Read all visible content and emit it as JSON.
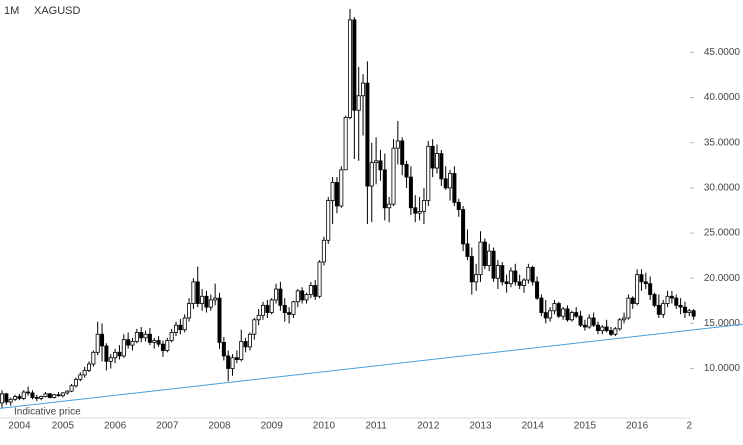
{
  "chart_data": {
    "type": "candlestick",
    "title": "XAGUSD",
    "subtitle": "1M",
    "annotation": "Indicative price",
    "categories": [
      null,
      null,
      null,
      null,
      "2004",
      null,
      null,
      null,
      null,
      null,
      null,
      null,
      null,
      null,
      "2005",
      null,
      null,
      null,
      null,
      null,
      null,
      null,
      null,
      null,
      null,
      null,
      "2006",
      null,
      null,
      null,
      null,
      null,
      null,
      null,
      null,
      null,
      null,
      null,
      "2007",
      null,
      null,
      null,
      null,
      null,
      null,
      null,
      null,
      null,
      null,
      null,
      "2008",
      null,
      null,
      null,
      null,
      null,
      null,
      null,
      null,
      null,
      null,
      null,
      "2009",
      null,
      null,
      null,
      null,
      null,
      null,
      null,
      null,
      null,
      null,
      null,
      "2010",
      null,
      null,
      null,
      null,
      null,
      null,
      null,
      null,
      null,
      null,
      null,
      "2011",
      null,
      null,
      null,
      null,
      null,
      null,
      null,
      null,
      null,
      null,
      null,
      "2012",
      null,
      null,
      null,
      null,
      null,
      null,
      null,
      null,
      null,
      null,
      null,
      "2013",
      null,
      null,
      null,
      null,
      null,
      null,
      null,
      null,
      null,
      null,
      null,
      "2014",
      null,
      null,
      null,
      null,
      null,
      null,
      null,
      null,
      null,
      null,
      null,
      "2015",
      null,
      null,
      null,
      null,
      null,
      null,
      null,
      null,
      null,
      null,
      null,
      "2016",
      null,
      null,
      null,
      null,
      null,
      null,
      null,
      null,
      null,
      null,
      null,
      "2"
    ],
    "ohlc": [
      [
        6.2,
        7.6,
        5.6,
        7.2
      ],
      [
        7.2,
        7.3,
        6.0,
        6.3
      ],
      [
        6.3,
        6.8,
        5.9,
        6.6
      ],
      [
        6.6,
        7.1,
        6.4,
        6.9
      ],
      [
        6.9,
        7.2,
        6.5,
        6.7
      ],
      [
        6.7,
        7.6,
        6.5,
        7.4
      ],
      [
        7.4,
        8.0,
        7.0,
        7.3
      ],
      [
        7.3,
        7.6,
        6.6,
        6.8
      ],
      [
        6.8,
        7.1,
        6.4,
        6.7
      ],
      [
        6.7,
        7.0,
        6.5,
        6.9
      ],
      [
        6.9,
        7.4,
        6.8,
        7.2
      ],
      [
        7.2,
        7.3,
        6.7,
        6.8
      ],
      [
        6.8,
        7.2,
        6.7,
        7.1
      ],
      [
        7.1,
        7.4,
        6.9,
        7.0
      ],
      [
        7.0,
        7.4,
        6.8,
        7.3
      ],
      [
        7.3,
        7.6,
        7.1,
        7.5
      ],
      [
        7.5,
        8.3,
        7.4,
        8.1
      ],
      [
        8.1,
        9.0,
        7.9,
        8.8
      ],
      [
        8.8,
        9.6,
        8.6,
        9.3
      ],
      [
        9.3,
        10.2,
        9.0,
        9.8
      ],
      [
        9.8,
        10.8,
        9.6,
        10.5
      ],
      [
        10.5,
        12.0,
        10.2,
        11.8
      ],
      [
        11.8,
        15.2,
        11.5,
        13.8
      ],
      [
        13.8,
        15.0,
        10.8,
        12.5
      ],
      [
        12.5,
        12.8,
        9.8,
        10.8
      ],
      [
        10.8,
        11.6,
        10.0,
        11.2
      ],
      [
        11.2,
        12.2,
        10.6,
        11.8
      ],
      [
        11.8,
        12.6,
        11.0,
        11.4
      ],
      [
        11.4,
        13.8,
        11.2,
        13.2
      ],
      [
        13.2,
        14.0,
        12.2,
        12.6
      ],
      [
        12.6,
        13.4,
        12.0,
        13.0
      ],
      [
        13.0,
        14.4,
        12.8,
        14.0
      ],
      [
        14.0,
        14.6,
        12.9,
        13.4
      ],
      [
        13.4,
        14.2,
        13.0,
        13.8
      ],
      [
        13.8,
        14.5,
        12.6,
        12.9
      ],
      [
        12.9,
        13.4,
        12.2,
        13.1
      ],
      [
        13.1,
        13.6,
        12.4,
        12.7
      ],
      [
        12.7,
        13.1,
        11.3,
        12.0
      ],
      [
        12.0,
        13.4,
        11.8,
        13.1
      ],
      [
        13.1,
        14.4,
        12.9,
        14.0
      ],
      [
        14.0,
        15.2,
        13.6,
        14.8
      ],
      [
        14.8,
        15.5,
        13.8,
        14.3
      ],
      [
        14.3,
        16.0,
        14.0,
        15.6
      ],
      [
        15.6,
        17.8,
        15.2,
        17.2
      ],
      [
        17.2,
        20.0,
        16.6,
        19.6
      ],
      [
        19.6,
        21.3,
        16.8,
        17.2
      ],
      [
        17.2,
        18.8,
        16.4,
        18.0
      ],
      [
        18.0,
        18.6,
        16.2,
        16.8
      ],
      [
        16.8,
        18.2,
        16.4,
        17.6
      ],
      [
        17.6,
        19.4,
        17.0,
        17.8
      ],
      [
        17.8,
        18.4,
        12.2,
        12.9
      ],
      [
        12.9,
        13.5,
        10.9,
        11.4
      ],
      [
        11.4,
        12.0,
        8.6,
        10.0
      ],
      [
        10.0,
        11.6,
        9.2,
        11.2
      ],
      [
        11.2,
        12.0,
        10.6,
        11.0
      ],
      [
        11.0,
        14.3,
        10.8,
        13.0
      ],
      [
        13.0,
        13.4,
        11.8,
        12.4
      ],
      [
        12.4,
        14.0,
        12.0,
        13.8
      ],
      [
        13.8,
        15.6,
        13.2,
        15.4
      ],
      [
        15.4,
        16.6,
        14.8,
        15.9
      ],
      [
        15.9,
        17.4,
        15.4,
        17.0
      ],
      [
        17.0,
        17.6,
        15.6,
        16.2
      ],
      [
        16.2,
        17.8,
        16.0,
        17.6
      ],
      [
        17.6,
        19.4,
        17.2,
        18.8
      ],
      [
        18.8,
        19.6,
        16.4,
        17.0
      ],
      [
        17.0,
        17.8,
        15.2,
        16.2
      ],
      [
        16.2,
        16.8,
        15.0,
        16.0
      ],
      [
        16.0,
        17.5,
        15.6,
        17.4
      ],
      [
        17.4,
        18.8,
        16.8,
        18.6
      ],
      [
        18.6,
        19.0,
        17.2,
        17.6
      ],
      [
        17.6,
        18.4,
        17.2,
        18.2
      ],
      [
        18.2,
        19.6,
        17.8,
        19.2
      ],
      [
        19.2,
        19.8,
        17.6,
        18.0
      ],
      [
        18.0,
        22.0,
        17.8,
        21.8
      ],
      [
        21.8,
        24.6,
        21.4,
        24.2
      ],
      [
        24.2,
        29.0,
        23.8,
        28.6
      ],
      [
        28.6,
        31.2,
        26.0,
        30.6
      ],
      [
        30.6,
        31.2,
        27.2,
        28.0
      ],
      [
        28.0,
        32.4,
        27.8,
        32.0
      ],
      [
        32.0,
        38.0,
        32.0,
        37.8
      ],
      [
        37.8,
        49.8,
        37.6,
        48.6
      ],
      [
        48.6,
        48.9,
        33.2,
        38.6
      ],
      [
        38.6,
        43.4,
        33.0,
        40.2
      ],
      [
        40.2,
        42.6,
        35.8,
        41.6
      ],
      [
        41.6,
        44.0,
        26.0,
        30.2
      ],
      [
        30.2,
        35.0,
        26.2,
        32.8
      ],
      [
        32.8,
        35.6,
        30.4,
        33.0
      ],
      [
        33.0,
        34.2,
        30.8,
        32.0
      ],
      [
        32.0,
        33.8,
        26.4,
        27.8
      ],
      [
        27.8,
        29.0,
        26.2,
        28.2
      ],
      [
        28.2,
        35.4,
        28.0,
        34.4
      ],
      [
        34.4,
        37.4,
        32.6,
        35.2
      ],
      [
        35.2,
        35.6,
        31.4,
        32.6
      ],
      [
        32.6,
        33.0,
        30.0,
        31.2
      ],
      [
        31.2,
        32.4,
        27.0,
        27.8
      ],
      [
        27.8,
        29.2,
        26.2,
        27.2
      ],
      [
        27.2,
        29.0,
        26.4,
        27.4
      ],
      [
        27.4,
        30.0,
        26.0,
        28.6
      ],
      [
        28.6,
        35.2,
        28.0,
        34.6
      ],
      [
        34.6,
        35.4,
        31.2,
        32.2
      ],
      [
        32.2,
        34.8,
        31.6,
        33.8
      ],
      [
        33.8,
        34.2,
        30.2,
        31.0
      ],
      [
        31.0,
        32.4,
        29.8,
        30.0
      ],
      [
        30.0,
        32.0,
        28.6,
        31.6
      ],
      [
        31.6,
        32.4,
        28.0,
        28.4
      ],
      [
        28.4,
        28.8,
        26.8,
        27.6
      ],
      [
        27.6,
        28.0,
        23.0,
        23.8
      ],
      [
        23.8,
        25.4,
        22.0,
        22.4
      ],
      [
        22.4,
        23.4,
        18.2,
        19.6
      ],
      [
        19.6,
        21.6,
        18.6,
        20.4
      ],
      [
        20.4,
        25.2,
        19.6,
        24.0
      ],
      [
        24.0,
        24.4,
        21.0,
        21.4
      ],
      [
        21.4,
        23.8,
        20.8,
        23.0
      ],
      [
        23.0,
        23.4,
        19.6,
        20.0
      ],
      [
        20.0,
        22.0,
        18.8,
        21.4
      ],
      [
        21.4,
        21.8,
        19.2,
        19.6
      ],
      [
        19.6,
        20.4,
        18.4,
        19.4
      ],
      [
        19.4,
        21.2,
        19.0,
        20.8
      ],
      [
        20.8,
        21.6,
        19.2,
        19.6
      ],
      [
        19.6,
        20.4,
        18.8,
        19.2
      ],
      [
        19.2,
        20.0,
        18.4,
        19.8
      ],
      [
        19.8,
        21.6,
        19.4,
        21.2
      ],
      [
        21.2,
        21.4,
        19.2,
        19.6
      ],
      [
        19.6,
        20.2,
        17.6,
        17.8
      ],
      [
        17.8,
        18.2,
        15.8,
        16.2
      ],
      [
        16.2,
        17.6,
        15.0,
        15.6
      ],
      [
        15.6,
        16.8,
        15.2,
        16.4
      ],
      [
        16.4,
        17.6,
        16.0,
        17.2
      ],
      [
        17.2,
        17.4,
        15.6,
        15.8
      ],
      [
        15.8,
        16.8,
        15.4,
        16.6
      ],
      [
        16.6,
        17.0,
        15.2,
        15.4
      ],
      [
        15.4,
        16.4,
        15.2,
        16.2
      ],
      [
        16.2,
        16.8,
        15.6,
        15.8
      ],
      [
        15.8,
        16.4,
        14.6,
        14.8
      ],
      [
        14.8,
        15.4,
        14.2,
        14.6
      ],
      [
        14.6,
        16.0,
        14.4,
        15.6
      ],
      [
        15.6,
        16.2,
        14.6,
        14.8
      ],
      [
        14.8,
        15.2,
        13.8,
        14.2
      ],
      [
        14.2,
        14.8,
        13.8,
        14.6
      ],
      [
        14.6,
        15.4,
        14.0,
        14.2
      ],
      [
        14.2,
        14.6,
        13.6,
        13.8
      ],
      [
        13.8,
        14.6,
        13.6,
        14.4
      ],
      [
        14.4,
        15.6,
        14.2,
        15.4
      ],
      [
        15.4,
        16.2,
        15.0,
        15.6
      ],
      [
        15.6,
        18.2,
        15.4,
        17.8
      ],
      [
        17.8,
        18.0,
        16.6,
        17.2
      ],
      [
        17.2,
        21.0,
        17.0,
        20.4
      ],
      [
        20.4,
        21.0,
        18.6,
        19.6
      ],
      [
        19.6,
        20.6,
        18.8,
        19.4
      ],
      [
        19.4,
        20.2,
        17.6,
        18.2
      ],
      [
        18.2,
        18.4,
        16.8,
        17.0
      ],
      [
        17.0,
        18.2,
        15.6,
        16.0
      ],
      [
        16.0,
        17.6,
        15.6,
        17.2
      ],
      [
        17.2,
        18.6,
        16.8,
        18.0
      ],
      [
        18.0,
        18.6,
        17.2,
        17.8
      ],
      [
        17.8,
        18.2,
        16.6,
        17.0
      ],
      [
        17.0,
        17.8,
        16.0,
        16.8
      ],
      [
        16.8,
        17.4,
        15.6,
        16.2
      ],
      [
        16.2,
        16.6,
        15.8,
        16.4
      ],
      [
        16.4,
        16.6,
        15.4,
        15.8
      ]
    ],
    "up_color": "#ffffff",
    "down_color": "#000000",
    "trendline": {
      "values": [
        5.6,
        14.9
      ],
      "color": "#4a9fd8"
    },
    "ylim": [
      3.2,
      50.8
    ],
    "yticks": [
      {
        "value": 10,
        "label": "10.0000"
      },
      {
        "value": 15,
        "label": "15.0000"
      },
      {
        "value": 20,
        "label": "20.0000"
      },
      {
        "value": 25,
        "label": "25.0000"
      },
      {
        "value": 30,
        "label": "30.0000"
      },
      {
        "value": 35,
        "label": "35.0000"
      },
      {
        "value": 40,
        "label": "40.0000"
      },
      {
        "value": 45,
        "label": "45.0000"
      }
    ]
  }
}
